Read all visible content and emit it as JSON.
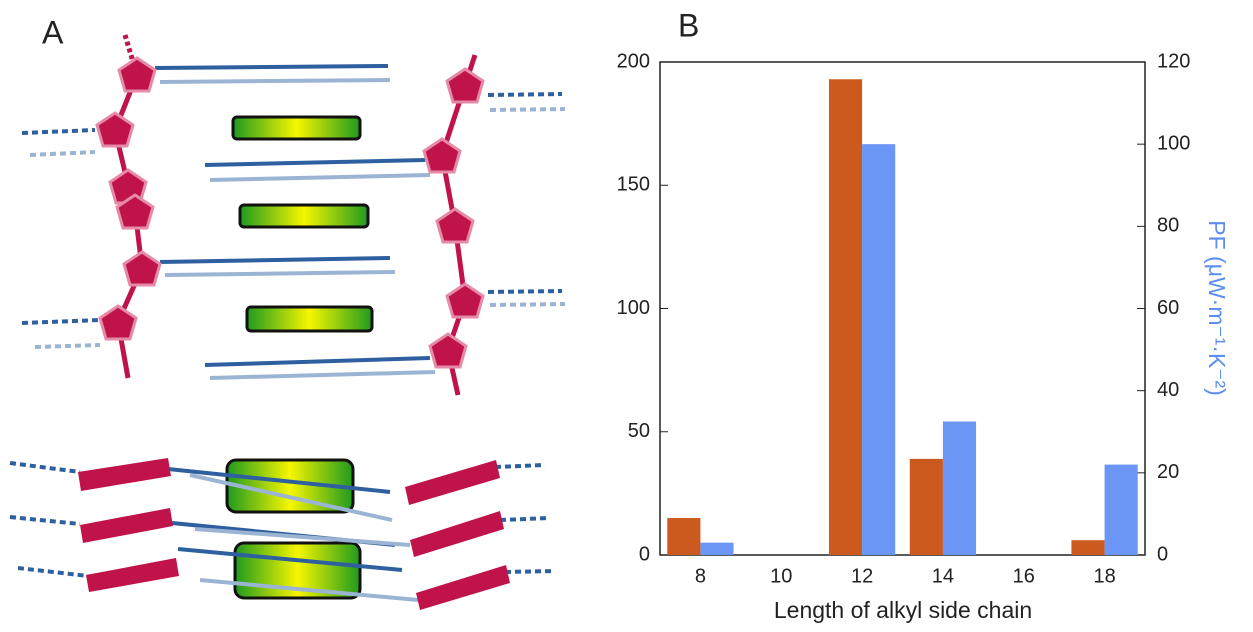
{
  "panels": {
    "a_label": "A",
    "b_label": "B"
  },
  "chart_data": {
    "type": "bar",
    "x_label": "Length of alkyl side chain",
    "y2_label": "PF (μW·m⁻¹·K⁻²)",
    "categories": [
      "8",
      "10",
      "12",
      "14",
      "16",
      "18"
    ],
    "series": [
      {
        "color": "#cc5a1e",
        "values": [
          15,
          null,
          193,
          39,
          null,
          6
        ]
      },
      {
        "color": "#6b96f5",
        "axis": "y2",
        "values": [
          3,
          null,
          100,
          32.5,
          null,
          22
        ]
      }
    ],
    "ylim": [
      0,
      200
    ],
    "yticks": [
      0,
      50,
      100,
      150,
      200
    ],
    "y2lim": [
      0,
      120
    ],
    "y2ticks": [
      0,
      20,
      40,
      60,
      80,
      100,
      120
    ],
    "y2_label_color": "#5b8ef0"
  }
}
